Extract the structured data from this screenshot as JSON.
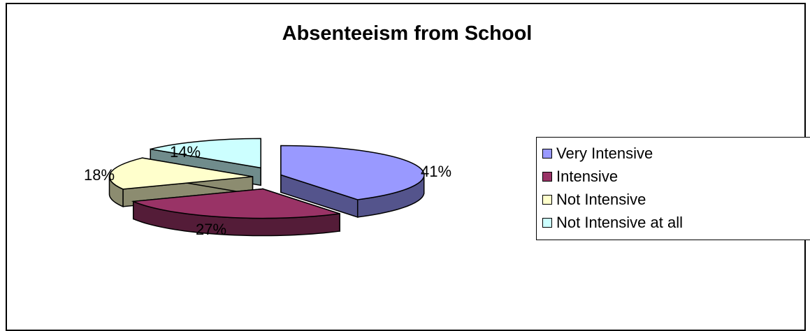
{
  "chart_data": {
    "type": "pie",
    "title": "Absenteeism from School",
    "categories": [
      "Very Intensive",
      "Intensive",
      "Not Intensive",
      "Not Intensive at all"
    ],
    "values": [
      41,
      27,
      18,
      14
    ],
    "labels": [
      "41%",
      "27%",
      "18%",
      "14%"
    ],
    "colors": [
      "#9999FF",
      "#993366",
      "#FFFFCC",
      "#CCFFFF"
    ],
    "legend_position": "right",
    "style": "3d-exploded"
  }
}
